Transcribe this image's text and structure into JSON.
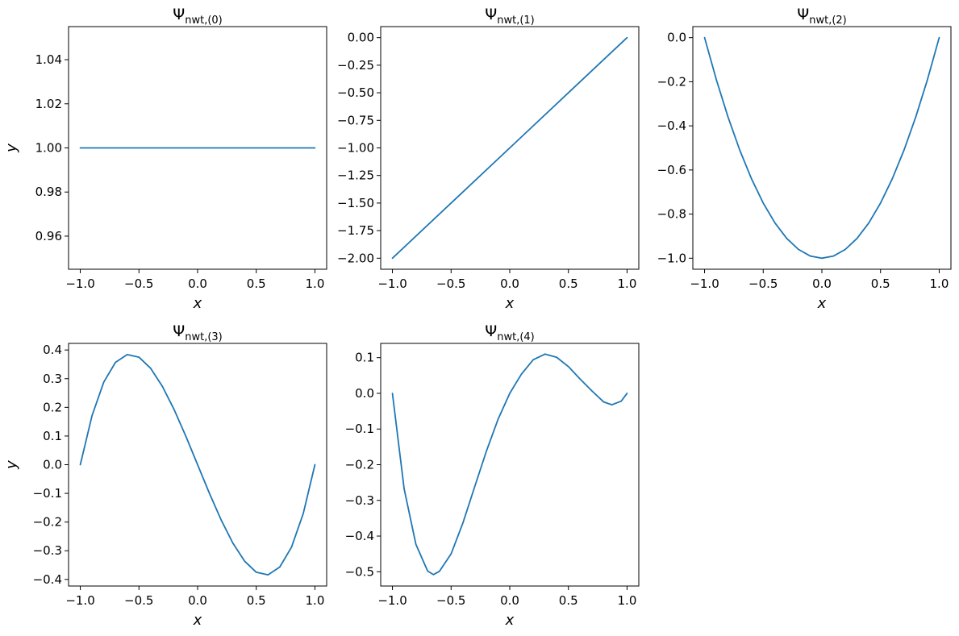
{
  "figure": {
    "background": "#ffffff",
    "line_color": "#1f77b4"
  },
  "chart_data": [
    {
      "type": "line",
      "title": {
        "main": "Ψ",
        "sub": "nwt,(0)"
      },
      "xlabel": "x",
      "ylabel": "y",
      "xlim": [
        -1.1,
        1.1
      ],
      "ylim": [
        0.945,
        1.055
      ],
      "xticks": [
        -1.0,
        -0.5,
        0.0,
        0.5,
        1.0
      ],
      "xtick_labels": [
        "−1.0",
        "−0.5",
        "0.0",
        "0.5",
        "1.0"
      ],
      "yticks": [
        0.96,
        0.98,
        1.0,
        1.02,
        1.04
      ],
      "ytick_labels": [
        "0.96",
        "0.98",
        "1.00",
        "1.02",
        "1.04"
      ],
      "series": [
        {
          "x": [
            -1.0,
            -0.5,
            0.0,
            0.5,
            1.0
          ],
          "y": [
            1.0,
            1.0,
            1.0,
            1.0,
            1.0
          ]
        }
      ]
    },
    {
      "type": "line",
      "title": {
        "main": "Ψ",
        "sub": "nwt,(1)"
      },
      "xlabel": "x",
      "ylabel": "",
      "xlim": [
        -1.1,
        1.1
      ],
      "ylim": [
        -2.1,
        0.1
      ],
      "xticks": [
        -1.0,
        -0.5,
        0.0,
        0.5,
        1.0
      ],
      "xtick_labels": [
        "−1.0",
        "−0.5",
        "0.0",
        "0.5",
        "1.0"
      ],
      "yticks": [
        -2.0,
        -1.75,
        -1.5,
        -1.25,
        -1.0,
        -0.75,
        -0.5,
        -0.25,
        0.0
      ],
      "ytick_labels": [
        "−2.00",
        "−1.75",
        "−1.50",
        "−1.25",
        "−1.00",
        "−0.75",
        "−0.50",
        "−0.25",
        "0.00"
      ],
      "series": [
        {
          "x": [
            -1.0,
            -0.5,
            0.0,
            0.5,
            1.0
          ],
          "y": [
            -2.0,
            -1.5,
            -1.0,
            -0.5,
            0.0
          ]
        }
      ]
    },
    {
      "type": "line",
      "title": {
        "main": "Ψ",
        "sub": "nwt,(2)"
      },
      "xlabel": "x",
      "ylabel": "",
      "xlim": [
        -1.1,
        1.1
      ],
      "ylim": [
        -1.05,
        0.05
      ],
      "xticks": [
        -1.0,
        -0.5,
        0.0,
        0.5,
        1.0
      ],
      "xtick_labels": [
        "−1.0",
        "−0.5",
        "0.0",
        "0.5",
        "1.0"
      ],
      "yticks": [
        -1.0,
        -0.8,
        -0.6,
        -0.4,
        -0.2,
        0.0
      ],
      "ytick_labels": [
        "−1.0",
        "−0.8",
        "−0.6",
        "−0.4",
        "−0.2",
        "0.0"
      ],
      "series": [
        {
          "x": [
            -1.0,
            -0.9,
            -0.8,
            -0.7,
            -0.6,
            -0.5,
            -0.4,
            -0.3,
            -0.2,
            -0.1,
            0.0,
            0.1,
            0.2,
            0.3,
            0.4,
            0.5,
            0.6,
            0.7,
            0.8,
            0.9,
            1.0
          ],
          "y": [
            0.0,
            -0.19,
            -0.36,
            -0.51,
            -0.64,
            -0.75,
            -0.84,
            -0.91,
            -0.96,
            -0.99,
            -1.0,
            -0.99,
            -0.96,
            -0.91,
            -0.84,
            -0.75,
            -0.64,
            -0.51,
            -0.36,
            -0.19,
            0.0
          ]
        }
      ]
    },
    {
      "type": "line",
      "title": {
        "main": "Ψ",
        "sub": "nwt,(3)"
      },
      "xlabel": "x",
      "ylabel": "y",
      "xlim": [
        -1.1,
        1.1
      ],
      "ylim": [
        -0.423,
        0.423
      ],
      "xticks": [
        -1.0,
        -0.5,
        0.0,
        0.5,
        1.0
      ],
      "xtick_labels": [
        "−1.0",
        "−0.5",
        "0.0",
        "0.5",
        "1.0"
      ],
      "yticks": [
        -0.4,
        -0.3,
        -0.2,
        -0.1,
        0.0,
        0.1,
        0.2,
        0.3,
        0.4
      ],
      "ytick_labels": [
        "−0.4",
        "−0.3",
        "−0.2",
        "−0.1",
        "0.0",
        "0.1",
        "0.2",
        "0.3",
        "0.4"
      ],
      "series": [
        {
          "x": [
            -1.0,
            -0.9,
            -0.8,
            -0.7,
            -0.6,
            -0.5,
            -0.4,
            -0.3,
            -0.2,
            -0.1,
            0.0,
            0.1,
            0.2,
            0.3,
            0.4,
            0.5,
            0.6,
            0.7,
            0.8,
            0.9,
            1.0
          ],
          "y": [
            0.0,
            0.171,
            0.288,
            0.357,
            0.384,
            0.375,
            0.336,
            0.273,
            0.192,
            0.099,
            0.0,
            -0.099,
            -0.192,
            -0.273,
            -0.336,
            -0.375,
            -0.384,
            -0.357,
            -0.288,
            -0.171,
            0.0
          ]
        }
      ]
    },
    {
      "type": "line",
      "title": {
        "main": "Ψ",
        "sub": "nwt,(4)"
      },
      "xlabel": "x",
      "ylabel": "",
      "xlim": [
        -1.1,
        1.1
      ],
      "ylim": [
        -0.54,
        0.14
      ],
      "xticks": [
        -1.0,
        -0.5,
        0.0,
        0.5,
        1.0
      ],
      "xtick_labels": [
        "−1.0",
        "−0.5",
        "0.0",
        "0.5",
        "1.0"
      ],
      "yticks": [
        -0.5,
        -0.4,
        -0.3,
        -0.2,
        -0.1,
        0.0,
        0.1
      ],
      "ytick_labels": [
        "−0.5",
        "−0.4",
        "−0.3",
        "−0.2",
        "−0.1",
        "0.0",
        "0.1"
      ],
      "series": [
        {
          "x": [
            -1.0,
            -0.9,
            -0.8,
            -0.7,
            -0.65,
            -0.6,
            -0.5,
            -0.4,
            -0.3,
            -0.2,
            -0.1,
            0.0,
            0.1,
            0.2,
            0.3,
            0.4,
            0.5,
            0.6,
            0.7,
            0.8,
            0.87,
            0.95,
            1.0
          ],
          "y": [
            0.0,
            -0.268,
            -0.423,
            -0.498,
            -0.508,
            -0.499,
            -0.45,
            -0.364,
            -0.263,
            -0.163,
            -0.073,
            0.0,
            0.054,
            0.094,
            0.11,
            0.101,
            0.075,
            0.04,
            0.007,
            -0.024,
            -0.032,
            -0.022,
            0.0
          ]
        }
      ]
    }
  ]
}
